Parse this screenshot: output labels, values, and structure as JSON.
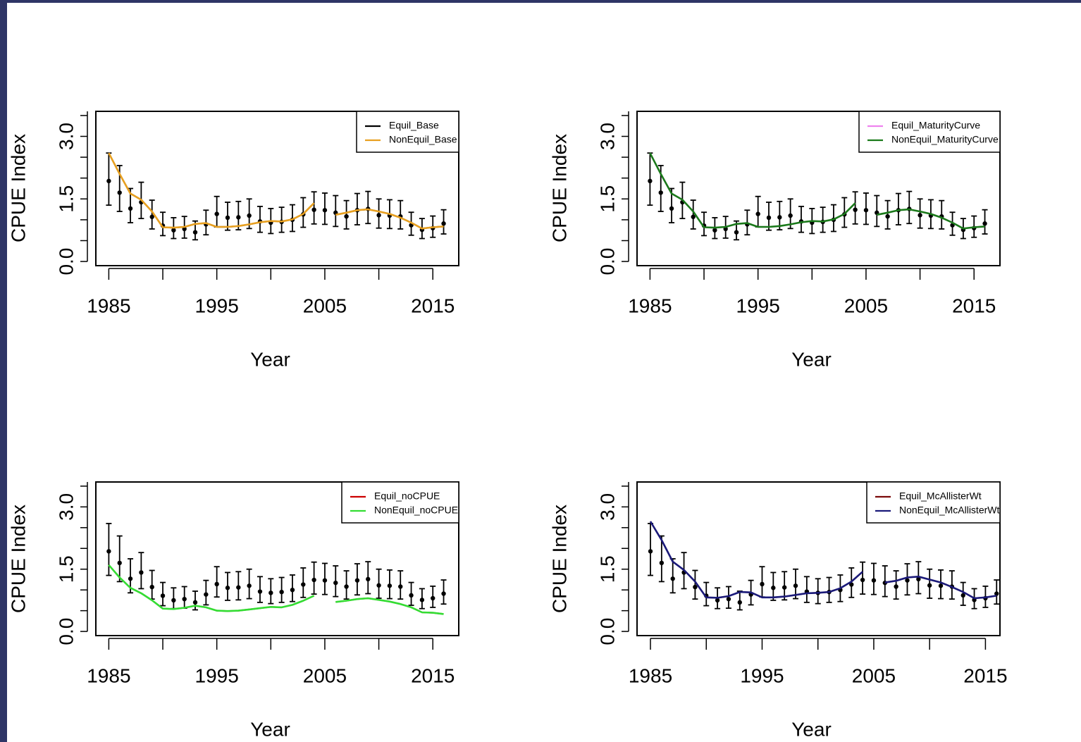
{
  "chart_data": [
    {
      "type": "line",
      "xlabel": "Year",
      "ylabel": "CPUE Index",
      "xticks": [
        1985,
        1995,
        2005,
        2015
      ],
      "yticks": [
        "0.0",
        "1.5",
        "3.0"
      ],
      "xlim": [
        1983.8,
        2017.4
      ],
      "ylim": [
        -0.1,
        3.6
      ],
      "legend": "top-right",
      "observed": {
        "years": [
          1985,
          1986,
          1987,
          1988,
          1989,
          1990,
          1991,
          1992,
          1993,
          1994,
          1995,
          1996,
          1997,
          1998,
          1999,
          2000,
          2001,
          2002,
          2003,
          2004,
          2005,
          2006,
          2007,
          2008,
          2009,
          2010,
          2011,
          2012,
          2013,
          2014,
          2015,
          2016
        ],
        "values": [
          1.93,
          1.65,
          1.27,
          1.42,
          1.07,
          0.86,
          0.75,
          0.78,
          0.7,
          0.89,
          1.14,
          1.05,
          1.06,
          1.1,
          0.96,
          0.93,
          0.95,
          1.0,
          1.13,
          1.24,
          1.23,
          1.17,
          1.08,
          1.23,
          1.26,
          1.11,
          1.1,
          1.08,
          0.87,
          0.76,
          0.8,
          0.91
        ],
        "lower": [
          1.35,
          1.2,
          0.93,
          1.03,
          0.78,
          0.62,
          0.55,
          0.56,
          0.52,
          0.64,
          0.83,
          0.75,
          0.76,
          0.79,
          0.7,
          0.67,
          0.7,
          0.72,
          0.82,
          0.9,
          0.89,
          0.84,
          0.78,
          0.88,
          0.91,
          0.8,
          0.79,
          0.78,
          0.63,
          0.55,
          0.58,
          0.66
        ],
        "upper": [
          2.6,
          2.3,
          1.75,
          1.9,
          1.47,
          1.18,
          1.05,
          1.08,
          0.97,
          1.23,
          1.56,
          1.42,
          1.44,
          1.5,
          1.32,
          1.27,
          1.3,
          1.36,
          1.53,
          1.67,
          1.64,
          1.58,
          1.46,
          1.63,
          1.68,
          1.5,
          1.48,
          1.46,
          1.18,
          1.03,
          1.09,
          1.24
        ]
      },
      "series": [
        {
          "name": "Equil_Base",
          "color": "#000000",
          "values": [
            2.6,
            2.1,
            1.63,
            1.48,
            1.2,
            0.82,
            0.81,
            0.83,
            0.9,
            0.92,
            0.83,
            0.83,
            0.85,
            0.89,
            0.94,
            0.97,
            0.96,
            1.01,
            1.14,
            1.4,
            null,
            1.12,
            1.17,
            1.23,
            1.25,
            1.2,
            1.14,
            1.05,
            0.93,
            0.79,
            0.82,
            0.84
          ]
        },
        {
          "name": "NonEquil_Base",
          "color": "#e8a020",
          "values": [
            2.6,
            2.1,
            1.63,
            1.48,
            1.2,
            0.82,
            0.81,
            0.83,
            0.9,
            0.92,
            0.83,
            0.83,
            0.85,
            0.89,
            0.94,
            0.97,
            0.96,
            1.01,
            1.14,
            1.4,
            null,
            1.12,
            1.17,
            1.23,
            1.25,
            1.2,
            1.14,
            1.05,
            0.93,
            0.79,
            0.82,
            0.84
          ]
        }
      ]
    },
    {
      "type": "line",
      "xlabel": "Year",
      "ylabel": "CPUE Index",
      "xticks": [
        1985,
        1995,
        2005,
        2015
      ],
      "yticks": [
        "0.0",
        "1.5",
        "3.0"
      ],
      "xlim": [
        1983.8,
        2017.4
      ],
      "ylim": [
        -0.1,
        3.6
      ],
      "legend": "top-right",
      "observed": {
        "years": [
          1985,
          1986,
          1987,
          1988,
          1989,
          1990,
          1991,
          1992,
          1993,
          1994,
          1995,
          1996,
          1997,
          1998,
          1999,
          2000,
          2001,
          2002,
          2003,
          2004,
          2005,
          2006,
          2007,
          2008,
          2009,
          2010,
          2011,
          2012,
          2013,
          2014,
          2015,
          2016
        ],
        "values": [
          1.93,
          1.65,
          1.27,
          1.42,
          1.07,
          0.86,
          0.75,
          0.78,
          0.7,
          0.89,
          1.14,
          1.05,
          1.06,
          1.1,
          0.96,
          0.93,
          0.95,
          1.0,
          1.13,
          1.24,
          1.23,
          1.17,
          1.08,
          1.23,
          1.26,
          1.11,
          1.1,
          1.08,
          0.87,
          0.76,
          0.8,
          0.91
        ],
        "lower": [
          1.35,
          1.2,
          0.93,
          1.03,
          0.78,
          0.62,
          0.55,
          0.56,
          0.52,
          0.64,
          0.83,
          0.75,
          0.76,
          0.79,
          0.7,
          0.67,
          0.7,
          0.72,
          0.82,
          0.9,
          0.89,
          0.84,
          0.78,
          0.88,
          0.91,
          0.8,
          0.79,
          0.78,
          0.63,
          0.55,
          0.58,
          0.66
        ],
        "upper": [
          2.6,
          2.3,
          1.75,
          1.9,
          1.47,
          1.18,
          1.05,
          1.08,
          0.97,
          1.23,
          1.56,
          1.42,
          1.44,
          1.5,
          1.32,
          1.27,
          1.3,
          1.36,
          1.53,
          1.67,
          1.64,
          1.58,
          1.46,
          1.63,
          1.68,
          1.5,
          1.48,
          1.46,
          1.18,
          1.03,
          1.09,
          1.24
        ]
      },
      "series": [
        {
          "name": "Equil_MaturityCurve",
          "color": "#ee82ee",
          "values": [
            2.6,
            2.1,
            1.63,
            1.48,
            1.2,
            0.82,
            0.81,
            0.83,
            0.9,
            0.92,
            0.83,
            0.83,
            0.85,
            0.89,
            0.94,
            0.97,
            0.96,
            1.01,
            1.14,
            1.4,
            null,
            1.12,
            1.17,
            1.23,
            1.25,
            1.2,
            1.14,
            1.05,
            0.93,
            0.79,
            0.82,
            0.84
          ]
        },
        {
          "name": "NonEquil_MaturityCurve",
          "color": "#1a7a1a",
          "values": [
            2.6,
            2.1,
            1.63,
            1.48,
            1.2,
            0.82,
            0.81,
            0.83,
            0.9,
            0.92,
            0.83,
            0.83,
            0.85,
            0.89,
            0.94,
            0.97,
            0.96,
            1.01,
            1.14,
            1.4,
            null,
            1.12,
            1.17,
            1.23,
            1.25,
            1.2,
            1.14,
            1.05,
            0.93,
            0.79,
            0.82,
            0.84
          ]
        }
      ]
    },
    {
      "type": "line",
      "xlabel": "Year",
      "ylabel": "CPUE Index",
      "xticks": [
        1985,
        1995,
        2005,
        2015
      ],
      "yticks": [
        "0.0",
        "1.5",
        "3.0"
      ],
      "xlim": [
        1983.8,
        2017.4
      ],
      "ylim": [
        -0.1,
        3.6
      ],
      "legend": "top-right",
      "observed": {
        "years": [
          1985,
          1986,
          1987,
          1988,
          1989,
          1990,
          1991,
          1992,
          1993,
          1994,
          1995,
          1996,
          1997,
          1998,
          1999,
          2000,
          2001,
          2002,
          2003,
          2004,
          2005,
          2006,
          2007,
          2008,
          2009,
          2010,
          2011,
          2012,
          2013,
          2014,
          2015,
          2016
        ],
        "values": [
          1.93,
          1.65,
          1.27,
          1.42,
          1.07,
          0.86,
          0.75,
          0.78,
          0.7,
          0.89,
          1.14,
          1.05,
          1.06,
          1.1,
          0.96,
          0.93,
          0.95,
          1.0,
          1.13,
          1.24,
          1.23,
          1.17,
          1.08,
          1.23,
          1.26,
          1.11,
          1.1,
          1.08,
          0.87,
          0.76,
          0.8,
          0.91
        ],
        "lower": [
          1.35,
          1.2,
          0.93,
          1.03,
          0.78,
          0.62,
          0.55,
          0.56,
          0.52,
          0.64,
          0.83,
          0.75,
          0.76,
          0.79,
          0.7,
          0.67,
          0.7,
          0.72,
          0.82,
          0.9,
          0.89,
          0.84,
          0.78,
          0.88,
          0.91,
          0.8,
          0.79,
          0.78,
          0.63,
          0.55,
          0.58,
          0.66
        ],
        "upper": [
          2.6,
          2.3,
          1.75,
          1.9,
          1.47,
          1.18,
          1.05,
          1.08,
          0.97,
          1.23,
          1.56,
          1.42,
          1.44,
          1.5,
          1.32,
          1.27,
          1.3,
          1.36,
          1.53,
          1.67,
          1.64,
          1.58,
          1.46,
          1.63,
          1.68,
          1.5,
          1.48,
          1.46,
          1.18,
          1.03,
          1.09,
          1.24
        ]
      },
      "series": [
        {
          "name": "Equil_noCPUE",
          "color": "#cc0000",
          "values": [
            1.6,
            1.3,
            1.05,
            0.92,
            0.75,
            0.55,
            0.54,
            0.57,
            0.62,
            0.58,
            0.5,
            0.49,
            0.5,
            0.53,
            0.56,
            0.59,
            0.58,
            0.64,
            0.74,
            0.86,
            null,
            0.71,
            0.74,
            0.78,
            0.8,
            0.76,
            0.72,
            0.66,
            0.58,
            0.46,
            0.45,
            0.42
          ]
        },
        {
          "name": "NonEquil_noCPUE",
          "color": "#33dd33",
          "values": [
            1.6,
            1.3,
            1.05,
            0.92,
            0.75,
            0.55,
            0.54,
            0.57,
            0.62,
            0.58,
            0.5,
            0.49,
            0.5,
            0.53,
            0.56,
            0.59,
            0.58,
            0.64,
            0.74,
            0.86,
            null,
            0.71,
            0.74,
            0.78,
            0.8,
            0.76,
            0.72,
            0.66,
            0.58,
            0.46,
            0.45,
            0.42
          ]
        }
      ]
    },
    {
      "type": "line",
      "xlabel": "Year",
      "ylabel": "CPUE Index",
      "xticks": [
        1985,
        1995,
        2005,
        2015
      ],
      "yticks": [
        "0.0",
        "1.5",
        "3.0"
      ],
      "xlim": [
        1983.8,
        2016.3
      ],
      "ylim": [
        -0.1,
        3.6
      ],
      "legend": "top-right",
      "observed": {
        "years": [
          1985,
          1986,
          1987,
          1988,
          1989,
          1990,
          1991,
          1992,
          1993,
          1994,
          1995,
          1996,
          1997,
          1998,
          1999,
          2000,
          2001,
          2002,
          2003,
          2004,
          2005,
          2006,
          2007,
          2008,
          2009,
          2010,
          2011,
          2012,
          2013,
          2014,
          2015,
          2016
        ],
        "values": [
          1.93,
          1.65,
          1.27,
          1.42,
          1.07,
          0.86,
          0.75,
          0.78,
          0.7,
          0.89,
          1.14,
          1.05,
          1.06,
          1.1,
          0.96,
          0.93,
          0.95,
          1.0,
          1.13,
          1.24,
          1.23,
          1.17,
          1.08,
          1.23,
          1.26,
          1.11,
          1.1,
          1.08,
          0.87,
          0.76,
          0.8,
          0.91
        ],
        "lower": [
          1.35,
          1.2,
          0.93,
          1.03,
          0.78,
          0.62,
          0.55,
          0.56,
          0.52,
          0.64,
          0.83,
          0.75,
          0.76,
          0.79,
          0.7,
          0.67,
          0.7,
          0.72,
          0.82,
          0.9,
          0.89,
          0.84,
          0.78,
          0.88,
          0.91,
          0.8,
          0.79,
          0.78,
          0.63,
          0.55,
          0.58,
          0.66
        ],
        "upper": [
          2.6,
          2.3,
          1.75,
          1.9,
          1.47,
          1.18,
          1.05,
          1.08,
          0.97,
          1.23,
          1.56,
          1.42,
          1.44,
          1.5,
          1.32,
          1.27,
          1.3,
          1.36,
          1.53,
          1.67,
          1.64,
          1.58,
          1.46,
          1.63,
          1.68,
          1.5,
          1.48,
          1.46,
          1.18,
          1.03,
          1.09,
          1.24
        ]
      },
      "series": [
        {
          "name": "Equil_McAllisterWt",
          "color": "#7a0a0a",
          "values": [
            2.65,
            2.2,
            1.68,
            1.48,
            1.2,
            0.82,
            0.81,
            0.85,
            0.95,
            0.94,
            0.82,
            0.82,
            0.84,
            0.88,
            0.92,
            0.93,
            0.95,
            1.04,
            1.2,
            1.44,
            null,
            1.18,
            1.22,
            1.3,
            1.32,
            1.25,
            1.18,
            1.07,
            0.95,
            0.8,
            0.82,
            0.86
          ]
        },
        {
          "name": "NonEquil_McAllisterWt",
          "color": "#1a1a7a",
          "values": [
            2.65,
            2.2,
            1.68,
            1.48,
            1.2,
            0.82,
            0.81,
            0.85,
            0.95,
            0.94,
            0.82,
            0.82,
            0.84,
            0.88,
            0.92,
            0.93,
            0.95,
            1.04,
            1.2,
            1.44,
            null,
            1.18,
            1.22,
            1.3,
            1.32,
            1.25,
            1.18,
            1.07,
            0.95,
            0.8,
            0.82,
            0.86
          ]
        }
      ]
    }
  ]
}
